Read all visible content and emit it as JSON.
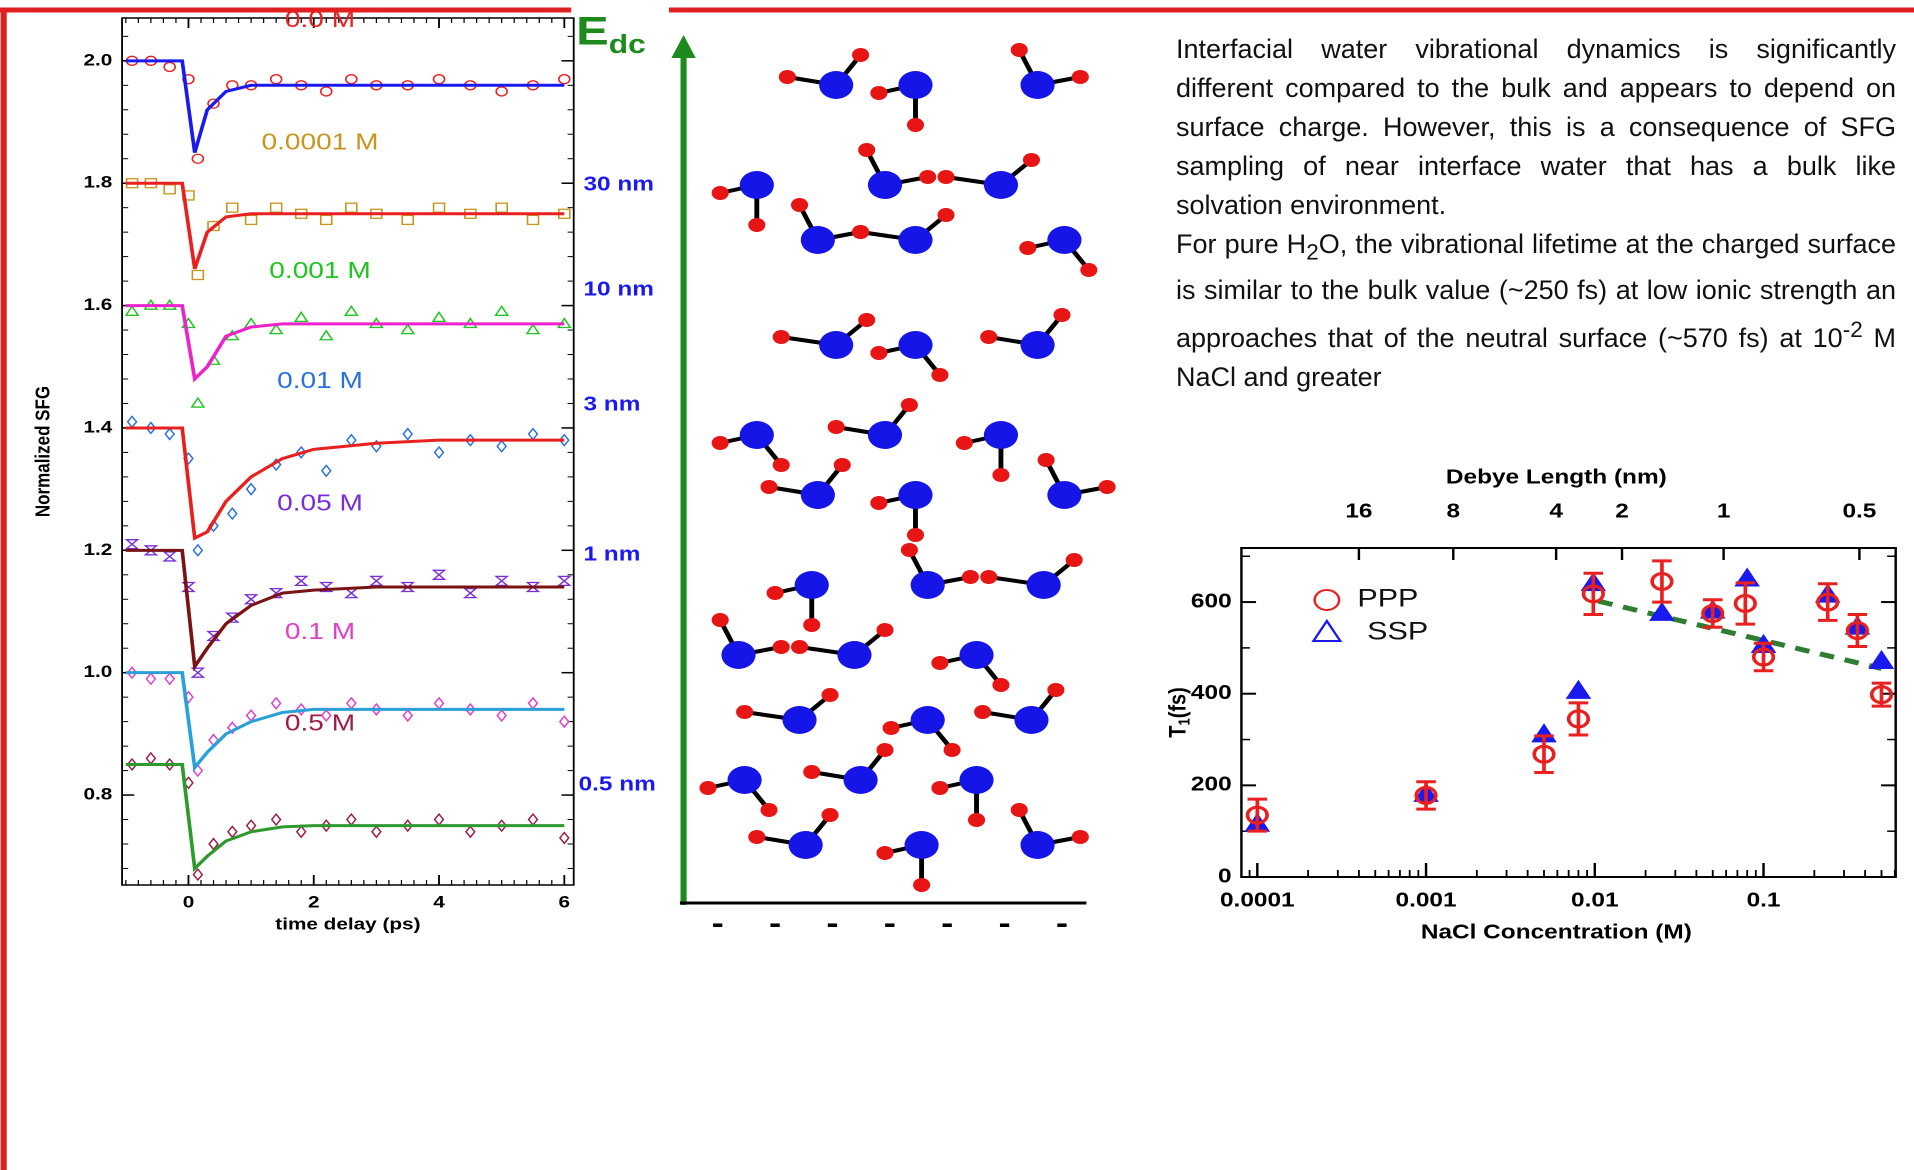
{
  "chart_data": [
    {
      "type": "line",
      "ylabel": "Normalized SFG",
      "xlabel": "time delay (ps)",
      "xlim": [
        -1.06,
        6.15
      ],
      "ylim": [
        0.653,
        2.07
      ],
      "xticks": [
        0,
        2,
        4,
        6
      ],
      "yticks": [
        0.8,
        {
          "value": 1,
          "label": "1.0"
        },
        1.2,
        1.4,
        1.6,
        1.8,
        {
          "value": 2,
          "label": "2.0"
        }
      ],
      "series": [
        {
          "name": "0.0 M",
          "mode": "markers",
          "marker": "circle",
          "color": "#e82020",
          "x": [
            -0.9,
            -0.6,
            -0.3,
            0,
            0.15,
            0.4,
            0.7,
            1,
            1.4,
            1.8,
            2.2,
            2.6,
            3,
            3.5,
            4,
            4.5,
            5,
            5.5,
            6
          ],
          "values": [
            2.0,
            2.0,
            1.99,
            1.97,
            1.84,
            1.93,
            1.96,
            1.96,
            1.97,
            1.96,
            1.95,
            1.97,
            1.96,
            1.96,
            1.97,
            1.96,
            1.95,
            1.96,
            1.97
          ]
        },
        {
          "mode": "line",
          "color": "#1a1aee",
          "x": [
            -1,
            -0.1,
            0.1,
            0.3,
            0.6,
            1,
            1.5,
            2,
            3,
            4,
            6
          ],
          "values": [
            2.0,
            2.0,
            1.85,
            1.92,
            1.95,
            1.96,
            1.96,
            1.96,
            1.96,
            1.96,
            1.96
          ]
        },
        {
          "name": "0.0001 M",
          "mode": "markers",
          "marker": "square",
          "color": "#c8961e",
          "x": [
            -0.9,
            -0.6,
            -0.3,
            0,
            0.15,
            0.4,
            0.7,
            1,
            1.4,
            1.8,
            2.2,
            2.6,
            3,
            3.5,
            4,
            4.5,
            5,
            5.5,
            6
          ],
          "values": [
            1.8,
            1.8,
            1.79,
            1.78,
            1.65,
            1.73,
            1.76,
            1.74,
            1.76,
            1.75,
            1.74,
            1.76,
            1.75,
            1.74,
            1.76,
            1.75,
            1.76,
            1.74,
            1.75
          ]
        },
        {
          "mode": "line",
          "color": "#e82020",
          "x": [
            -1,
            -0.1,
            0.1,
            0.3,
            0.6,
            1,
            1.5,
            2,
            3,
            4,
            6
          ],
          "values": [
            1.8,
            1.8,
            1.66,
            1.72,
            1.745,
            1.75,
            1.75,
            1.75,
            1.75,
            1.75,
            1.75
          ]
        },
        {
          "name": "0.001 M",
          "mode": "markers",
          "marker": "triangle",
          "color": "#22c422",
          "x": [
            -0.9,
            -0.6,
            -0.3,
            0,
            0.15,
            0.4,
            0.7,
            1,
            1.4,
            1.8,
            2.2,
            2.6,
            3,
            3.5,
            4,
            4.5,
            5,
            5.5,
            6
          ],
          "values": [
            1.59,
            1.6,
            1.6,
            1.57,
            1.44,
            1.51,
            1.55,
            1.57,
            1.56,
            1.58,
            1.55,
            1.59,
            1.57,
            1.56,
            1.58,
            1.57,
            1.59,
            1.56,
            1.57
          ]
        },
        {
          "mode": "line",
          "color": "#ee22cc",
          "x": [
            -1,
            -0.1,
            0.1,
            0.3,
            0.6,
            1,
            1.5,
            2,
            3,
            4,
            6
          ],
          "values": [
            1.6,
            1.6,
            1.48,
            1.5,
            1.55,
            1.565,
            1.57,
            1.57,
            1.57,
            1.57,
            1.57
          ]
        },
        {
          "name": "0.01 M",
          "mode": "markers",
          "marker": "diamond",
          "color": "#2a70d8",
          "x": [
            -0.9,
            -0.6,
            -0.3,
            0,
            0.15,
            0.4,
            0.7,
            1,
            1.4,
            1.8,
            2.2,
            2.6,
            3,
            3.5,
            4,
            4.5,
            5,
            5.5,
            6
          ],
          "values": [
            1.41,
            1.4,
            1.39,
            1.35,
            1.2,
            1.24,
            1.26,
            1.3,
            1.34,
            1.36,
            1.33,
            1.38,
            1.37,
            1.39,
            1.36,
            1.38,
            1.37,
            1.39,
            1.38
          ]
        },
        {
          "mode": "line",
          "color": "#e82020",
          "x": [
            -1,
            -0.1,
            0.1,
            0.3,
            0.6,
            1,
            1.5,
            2,
            3,
            4,
            6
          ],
          "values": [
            1.4,
            1.4,
            1.22,
            1.23,
            1.28,
            1.32,
            1.35,
            1.365,
            1.375,
            1.38,
            1.38
          ]
        },
        {
          "name": "0.05 M",
          "mode": "markers",
          "marker": "hourglass",
          "color": "#7a2ed8",
          "x": [
            -0.9,
            -0.6,
            -0.3,
            0,
            0.15,
            0.4,
            0.7,
            1,
            1.4,
            1.8,
            2.2,
            2.6,
            3,
            3.5,
            4,
            4.5,
            5,
            5.5,
            6
          ],
          "values": [
            1.21,
            1.2,
            1.19,
            1.14,
            1.0,
            1.06,
            1.09,
            1.12,
            1.13,
            1.15,
            1.14,
            1.13,
            1.15,
            1.14,
            1.16,
            1.13,
            1.15,
            1.14,
            1.15
          ]
        },
        {
          "mode": "line",
          "color": "#7a1414",
          "x": [
            -1,
            -0.1,
            0.1,
            0.3,
            0.6,
            1,
            1.5,
            2,
            3,
            4,
            6
          ],
          "values": [
            1.2,
            1.2,
            1.01,
            1.04,
            1.08,
            1.11,
            1.13,
            1.135,
            1.14,
            1.14,
            1.14
          ]
        },
        {
          "name": "0.1 M",
          "mode": "markers",
          "marker": "diamond",
          "color": "#e040c8",
          "x": [
            -0.9,
            -0.6,
            -0.3,
            0,
            0.15,
            0.4,
            0.7,
            1,
            1.4,
            1.8,
            2.2,
            2.6,
            3,
            3.5,
            4,
            4.5,
            5,
            5.5,
            6
          ],
          "values": [
            1.0,
            0.99,
            0.99,
            0.96,
            0.84,
            0.89,
            0.91,
            0.93,
            0.95,
            0.94,
            0.93,
            0.95,
            0.94,
            0.93,
            0.95,
            0.94,
            0.93,
            0.95,
            0.92
          ]
        },
        {
          "mode": "line",
          "color": "#2aa0d8",
          "x": [
            -1,
            -0.1,
            0.1,
            0.3,
            0.6,
            1,
            1.5,
            2,
            3,
            4,
            6
          ],
          "values": [
            1.0,
            1.0,
            0.845,
            0.87,
            0.9,
            0.92,
            0.935,
            0.94,
            0.94,
            0.94,
            0.94
          ]
        },
        {
          "name": "0.5 M",
          "mode": "markers",
          "marker": "diamond",
          "color": "#9a1e48",
          "x": [
            -0.9,
            -0.6,
            -0.3,
            0,
            0.15,
            0.4,
            0.7,
            1,
            1.4,
            1.8,
            2.2,
            2.6,
            3,
            3.5,
            4,
            4.5,
            5,
            5.5,
            6
          ],
          "values": [
            0.85,
            0.86,
            0.85,
            0.82,
            0.67,
            0.72,
            0.74,
            0.75,
            0.76,
            0.74,
            0.75,
            0.76,
            0.74,
            0.75,
            0.76,
            0.74,
            0.75,
            0.76,
            0.73
          ]
        },
        {
          "mode": "line",
          "color": "#2e9a2e",
          "x": [
            -1,
            -0.1,
            0.1,
            0.3,
            0.6,
            1,
            1.5,
            2,
            3,
            4,
            6
          ],
          "values": [
            0.85,
            0.85,
            0.68,
            0.7,
            0.725,
            0.74,
            0.748,
            0.75,
            0.75,
            0.75,
            0.75
          ]
        }
      ]
    },
    {
      "type": "scatter",
      "xscale": "log",
      "xlabel": "NaCl Concentration (M)",
      "x2label": "Debye Length (nm)",
      "ylabel": [
        "T",
        "1",
        "(fs)"
      ],
      "xlim": [
        8.05e-05,
        0.607
      ],
      "ylim": [
        0,
        718
      ],
      "xticks": [
        0.0001,
        0.001,
        0.01,
        0.1
      ],
      "yticks": [
        0,
        200,
        400,
        600
      ],
      "x2ticks": [
        {
          "value": 0.0004,
          "label": "16"
        },
        {
          "value": 0.00145,
          "label": "8"
        },
        {
          "value": 0.0059,
          "label": "4"
        },
        {
          "value": 0.0145,
          "label": "2"
        },
        {
          "value": 0.058,
          "label": "1"
        },
        {
          "value": 0.37,
          "label": "0.5"
        }
      ],
      "legend": "upper left",
      "series": [
        {
          "name": "SSP",
          "marker": "triangle",
          "color": "#1a1aee",
          "x": [
            0.0001,
            0.001,
            0.005,
            0.008,
            0.0098,
            0.025,
            0.05,
            0.08,
            0.1,
            0.24,
            0.36,
            0.5
          ],
          "values": [
            115,
            180,
            310,
            405,
            640,
            575,
            580,
            650,
            505,
            615,
            545,
            470
          ]
        },
        {
          "name": "PPP",
          "marker": "circle",
          "color": "#e82020",
          "x": [
            0.0001,
            0.001,
            0.005,
            0.008,
            0.0098,
            0.025,
            0.05,
            0.078,
            0.1,
            0.24,
            0.36,
            0.5
          ],
          "values": [
            135,
            178,
            268,
            345,
            618,
            645,
            575,
            597,
            480,
            600,
            538,
            398
          ],
          "errors": [
            35,
            30,
            40,
            35,
            45,
            45,
            30,
            45,
            30,
            40,
            35,
            25
          ]
        }
      ],
      "trend": {
        "color": "#2e7d32",
        "x": [
          0.0105,
          0.5
        ],
        "values": [
          602,
          455
        ]
      }
    }
  ],
  "diagram": {
    "field_label": "E",
    "field_subscript": "dc",
    "distances": [
      "30 nm",
      "10 nm",
      "3 nm",
      "1 nm",
      "0.5 nm"
    ],
    "surface_charges": [
      "-",
      "-",
      "-",
      "-",
      "-",
      "-",
      "-"
    ]
  },
  "text": {
    "p1": "Interfacial water vibrational dynamics is significantly different compared to the bulk and appears to depend on surface charge. However, this is a consequence of SFG sampling of near interface water that has a bulk like solvation environment.",
    "p2a": "For pure H",
    "p2b": "2",
    "p2c": "O, the vibrational lifetime at the charged surface is similar to the bulk value (~250 fs) at low ionic strength an approaches that of the neutral surface (~570 fs) at 10",
    "p2d": "-2",
    "p2e": " M NaCl and greater"
  }
}
